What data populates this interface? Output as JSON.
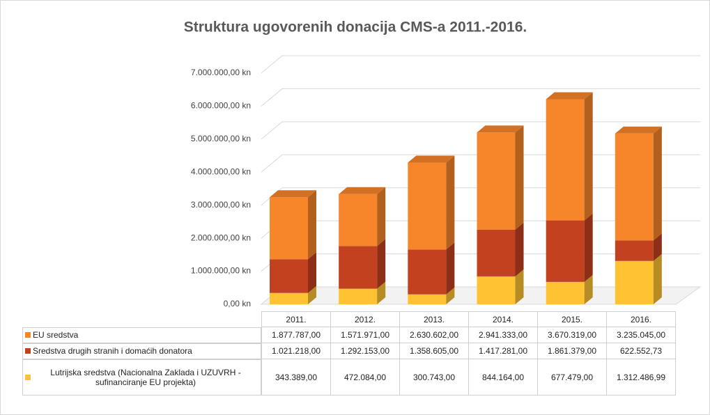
{
  "chart_data": {
    "type": "bar3d_stacked",
    "title": "Struktura ugovorenih donacija CMS-a  2011.-2016.",
    "categories": [
      "2011.",
      "2012.",
      "2013.",
      "2014.",
      "2015.",
      "2016."
    ],
    "series": [
      {
        "name": "Lutrijska sredstva (Nacionalna Zaklada i  UZUVRH - sufinanciranje EU projekta)",
        "color": "#ffc233",
        "values": [
          343389,
          472084,
          300743,
          844164,
          677479,
          1312486.99
        ],
        "value_labels": [
          "343.389,00",
          "472.084,00",
          "300.743,00",
          "844.164,00",
          "677.479,00",
          "1.312.486,99"
        ]
      },
      {
        "name": "Sredstva drugih stranih i domaćih donatora",
        "color": "#c2411f",
        "values": [
          1021218,
          1292153,
          1358605,
          1417281,
          1861379,
          622552.73
        ],
        "value_labels": [
          "1.021.218,00",
          "1.292.153,00",
          "1.358.605,00",
          "1.417.281,00",
          "1.861.379,00",
          "622.552,73"
        ]
      },
      {
        "name": "EU sredstva",
        "color": "#f7852a",
        "values": [
          1877787,
          1571971,
          2630602,
          2941333,
          3670319,
          3235045
        ],
        "value_labels": [
          "1.877.787,00",
          "1.571.971,00",
          "2.630.602,00",
          "2.941.333,00",
          "3.670.319,00",
          "3.235.045,00"
        ]
      }
    ],
    "ylim": [
      0,
      7000000
    ],
    "yticks": [
      {
        "value": 0,
        "label": "0,00 kn"
      },
      {
        "value": 1000000,
        "label": "1.000.000,00 kn"
      },
      {
        "value": 2000000,
        "label": "2.000.000,00 kn"
      },
      {
        "value": 3000000,
        "label": "3.000.000,00 kn"
      },
      {
        "value": 4000000,
        "label": "4.000.000,00 kn"
      },
      {
        "value": 5000000,
        "label": "5.000.000,00 kn"
      },
      {
        "value": 6000000,
        "label": "6.000.000,00 kn"
      },
      {
        "value": 7000000,
        "label": "7.000.000,00 kn"
      }
    ],
    "grid": true
  }
}
